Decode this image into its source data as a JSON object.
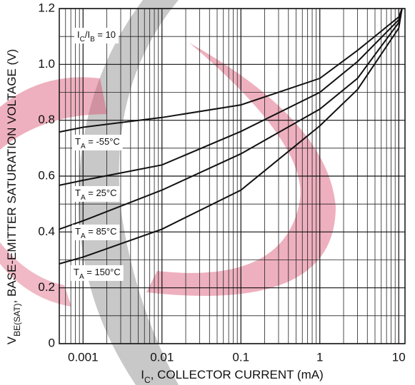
{
  "chart_data": {
    "type": "line",
    "x_scale": "log",
    "x": [
      0.0005,
      0.001,
      0.01,
      0.1,
      1,
      3,
      10,
      11
    ],
    "series": [
      {
        "name": "TA = -55°C",
        "color": "#111111",
        "values": [
          0.758,
          0.775,
          0.81,
          0.855,
          0.95,
          1.05,
          1.17,
          1.2
        ]
      },
      {
        "name": "TA = 25°C",
        "color": "#111111",
        "values": [
          0.567,
          0.585,
          0.64,
          0.76,
          0.9,
          1.01,
          1.16,
          1.2
        ]
      },
      {
        "name": "TA = 85°C",
        "color": "#111111",
        "values": [
          0.41,
          0.44,
          0.55,
          0.68,
          0.84,
          0.95,
          1.15,
          1.2
        ]
      },
      {
        "name": "TA = 150°C",
        "color": "#111111",
        "values": [
          0.286,
          0.31,
          0.41,
          0.55,
          0.78,
          0.91,
          1.13,
          1.2
        ]
      }
    ],
    "xlim": [
      0.0005,
      12
    ],
    "ylim": [
      0,
      1.2
    ],
    "xticks": [
      0.001,
      0.01,
      0.1,
      1,
      10
    ],
    "yticks": [
      0,
      0.2,
      0.4,
      0.6,
      0.8,
      {
        "value": 1,
        "label": "1.0"
      },
      1.2
    ],
    "grid": true,
    "minor_grid": true,
    "x_label": [
      {
        "text": "I"
      },
      {
        "text": "C",
        "sub": true
      },
      {
        "text": ", COLLECTOR CURRENT (mA)"
      }
    ],
    "y_label": [
      {
        "text": "V"
      },
      {
        "text": "BE(SAT)",
        "sub": true
      },
      {
        "text": ", BASE-EMITTER SATURATION VOLTAGE (V)"
      }
    ],
    "annotations": [
      [
        {
          "text": "I"
        },
        {
          "text": "C",
          "sub": true
        },
        {
          "text": "/I"
        },
        {
          "text": "B",
          "sub": true
        },
        {
          "text": " = 10"
        }
      ],
      [
        {
          "text": "T"
        },
        {
          "text": "A",
          "sub": true
        },
        {
          "text": " = -55°C"
        }
      ],
      [
        {
          "text": "T"
        },
        {
          "text": "A",
          "sub": true
        },
        {
          "text": " = 25°C"
        }
      ],
      [
        {
          "text": "T"
        },
        {
          "text": "A",
          "sub": true
        },
        {
          "text": " = 85°C"
        }
      ],
      [
        {
          "text": "T"
        },
        {
          "text": "A",
          "sub": true
        },
        {
          "text": " = 150°C"
        }
      ]
    ]
  }
}
